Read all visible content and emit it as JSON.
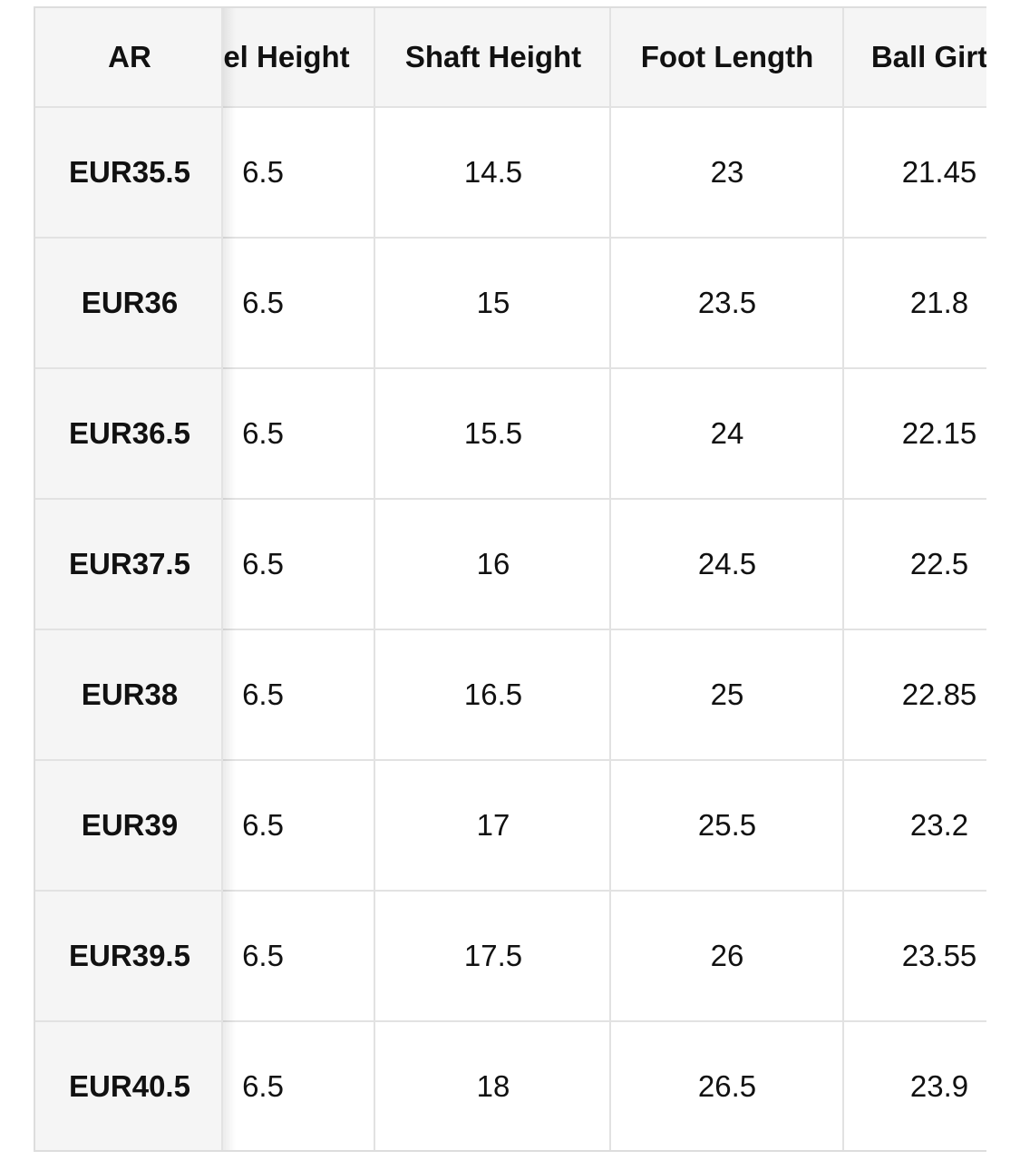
{
  "table": {
    "header": [
      "AR",
      "el Height",
      "Shaft Height",
      "Foot Length",
      "Ball Girt"
    ],
    "rows": [
      [
        "EUR35.5",
        "6.5",
        "14.5",
        "23",
        "21.45"
      ],
      [
        "EUR36",
        "6.5",
        "15",
        "23.5",
        "21.8"
      ],
      [
        "EUR36.5",
        "6.5",
        "15.5",
        "24",
        "22.15"
      ],
      [
        "EUR37.5",
        "6.5",
        "16",
        "24.5",
        "22.5"
      ],
      [
        "EUR38",
        "6.5",
        "16.5",
        "25",
        "22.85"
      ],
      [
        "EUR39",
        "6.5",
        "17",
        "25.5",
        "23.2"
      ],
      [
        "EUR39.5",
        "6.5",
        "17.5",
        "26",
        "23.55"
      ],
      [
        "EUR40.5",
        "6.5",
        "18",
        "26.5",
        "23.9"
      ]
    ]
  }
}
